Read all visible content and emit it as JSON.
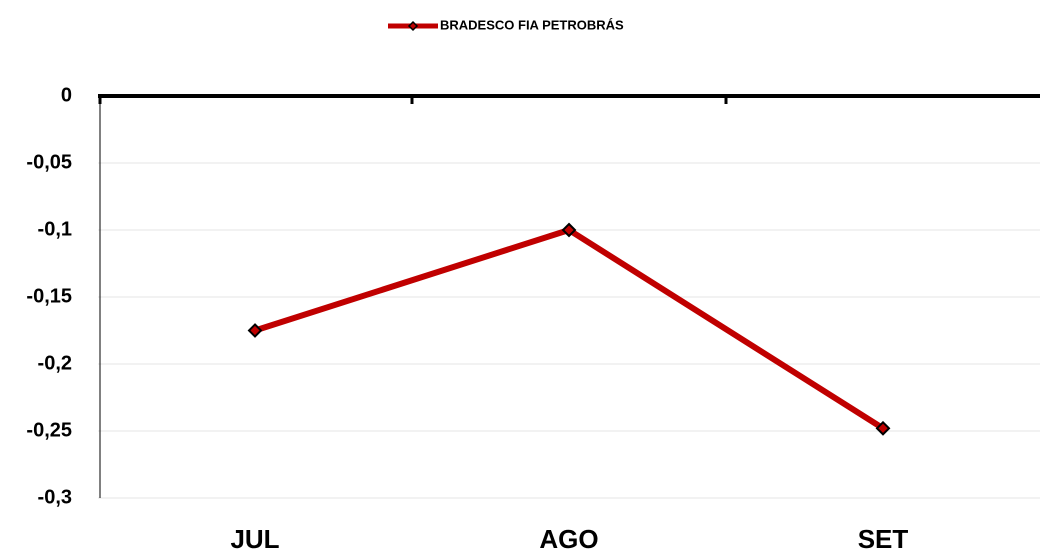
{
  "chart_data": {
    "type": "line",
    "categories": [
      "JUL",
      "AGO",
      "SET"
    ],
    "series": [
      {
        "name": "BRADESCO FIA PETROBRÁS",
        "color": "#c00000",
        "values": [
          -0.175,
          -0.1,
          -0.248
        ]
      }
    ],
    "ylim": [
      -0.3,
      0
    ],
    "yticks": [
      0,
      {
        "value": -0.05,
        "label": "-0,05"
      },
      {
        "value": -0.1,
        "label": "-0,1"
      },
      {
        "value": -0.15,
        "label": "-0,15"
      },
      {
        "value": -0.2,
        "label": "-0,2"
      },
      {
        "value": -0.25,
        "label": "-0,25"
      },
      {
        "value": -0.3,
        "label": "-0,3"
      }
    ],
    "grid": true,
    "legend": "top"
  }
}
